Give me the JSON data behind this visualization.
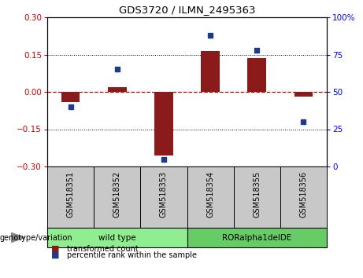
{
  "title": "GDS3720 / ILMN_2495363",
  "samples": [
    "GSM518351",
    "GSM518352",
    "GSM518353",
    "GSM518354",
    "GSM518355",
    "GSM518356"
  ],
  "red_bars": [
    -0.04,
    0.02,
    -0.255,
    0.163,
    0.135,
    -0.02
  ],
  "blue_dots": [
    40,
    65,
    5,
    88,
    78,
    30
  ],
  "groups": [
    {
      "label": "wild type",
      "start": 0,
      "end": 3,
      "color": "#90EE90"
    },
    {
      "label": "RORalpha1delDE",
      "start": 3,
      "end": 6,
      "color": "#66CC66"
    }
  ],
  "ylim_left": [
    -0.3,
    0.3
  ],
  "ylim_right": [
    0,
    100
  ],
  "yticks_left": [
    -0.3,
    -0.15,
    0,
    0.15,
    0.3
  ],
  "yticks_right": [
    0,
    25,
    50,
    75,
    100
  ],
  "red_color": "#8B1A1A",
  "blue_color": "#1E3A8A",
  "hline_color": "#CC0000",
  "bg_plot": "#FFFFFF",
  "bg_samples": "#C8C8C8",
  "legend_red_label": "transformed count",
  "legend_blue_label": "percentile rank within the sample",
  "genotype_label": "genotype/variation",
  "bar_width": 0.4
}
